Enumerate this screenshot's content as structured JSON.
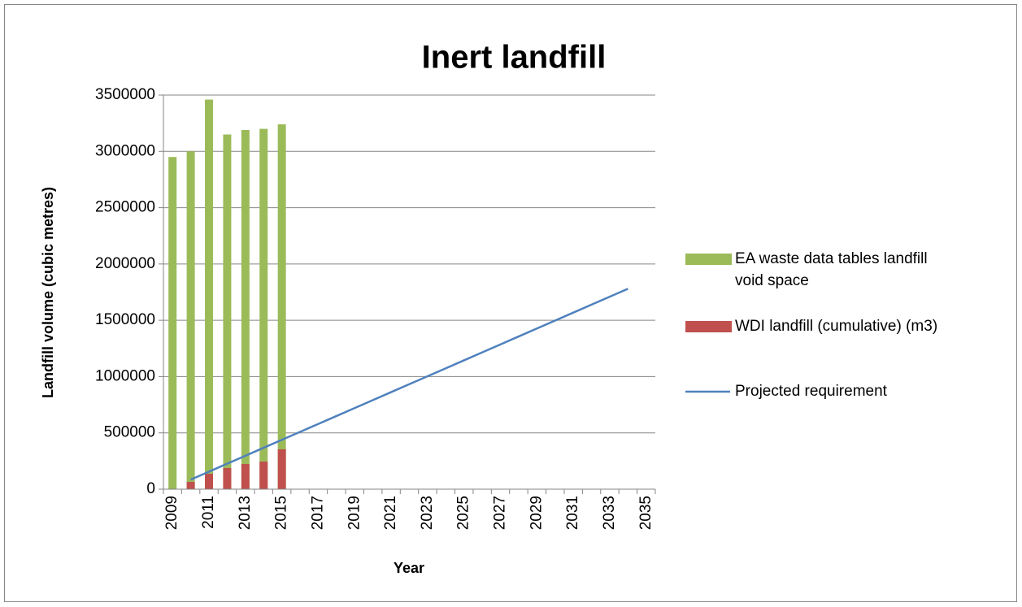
{
  "chart_data": {
    "type": "bar",
    "title": "Inert landfill",
    "x_label": "Year",
    "y_label": "Landfill volume (cubic metres)",
    "categories": [
      "2009",
      null,
      "2011",
      null,
      "2013",
      null,
      "2015",
      null,
      "2017",
      null,
      "2019",
      null,
      "2021",
      null,
      "2023",
      null,
      "2025",
      null,
      "2027",
      null,
      "2029",
      null,
      "2031",
      null,
      "2033",
      null,
      "2035"
    ],
    "series": [
      {
        "name": "EA waste data tables landfill void space",
        "type": "bar",
        "color": "#9bbb59",
        "values": [
          2950000,
          3000000,
          3460000,
          3150000,
          3190000,
          3200000,
          3240000,
          null,
          null,
          null,
          null,
          null,
          null,
          null,
          null,
          null,
          null,
          null,
          null,
          null,
          null,
          null,
          null,
          null,
          null,
          null,
          null
        ]
      },
      {
        "name": "WDI landfill (cumulative) (m3)",
        "type": "bar",
        "color": "#c0504d",
        "values": [
          0,
          65000,
          137000,
          188000,
          224000,
          245000,
          354000,
          null,
          null,
          null,
          null,
          null,
          null,
          null,
          null,
          null,
          null,
          null,
          null,
          null,
          null,
          null,
          null,
          null,
          null,
          null,
          null
        ]
      },
      {
        "name": "Projected requirement",
        "type": "line",
        "color": "#4f81bd",
        "values": [
          null,
          85000,
          155625,
          226250,
          296875,
          367500,
          438125,
          508750,
          579375,
          650000,
          720625,
          791250,
          861875,
          932500,
          1003125,
          1073750,
          1144375,
          1215000,
          1285625,
          1356250,
          1426875,
          1497500,
          1568125,
          1638750,
          1709375,
          1780000,
          null
        ]
      }
    ],
    "ylim": [
      0,
      3500000
    ],
    "yticks": [
      0,
      500000,
      1000000,
      1500000,
      2000000,
      2500000,
      3000000,
      3500000
    ],
    "grid": true,
    "legend": "right"
  }
}
